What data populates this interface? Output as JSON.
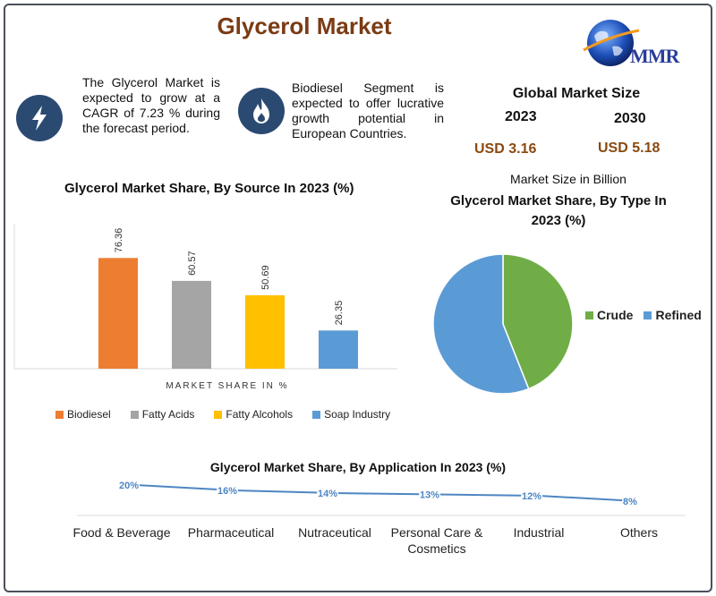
{
  "header": {
    "title": "Glycerol Market",
    "logo_text": "MMR"
  },
  "notes": [
    {
      "icon": "lightning-icon",
      "text": "The Glycerol Market is expected to grow at a CAGR of 7.23 % during the forecast period."
    },
    {
      "icon": "flame-icon",
      "text": "Biodiesel Segment is expected to offer lucrative growth potential in European Countries."
    }
  ],
  "global_market": {
    "title": "Global Market Size",
    "year_a": "2023",
    "year_b": "2030",
    "value_a": "USD 3.16",
    "value_b": "USD 5.18",
    "note": "Market Size in Billion"
  },
  "colors": {
    "biodiesel": "#ed7d31",
    "fatty_acids": "#a5a5a5",
    "fatty_alcohols": "#ffc000",
    "soap": "#5b9bd5",
    "crude": "#70ad47",
    "refined": "#5b9bd5",
    "line": "#4e86c2"
  },
  "chart_data": [
    {
      "type": "bar",
      "title": "Glycerol Market Share, By Source In 2023 (%)",
      "xlabel": "MARKET SHARE IN %",
      "categories": [
        "Biodiesel",
        "Fatty Acids",
        "Fatty Alcohols",
        "Soap Industry"
      ],
      "values": [
        76.36,
        60.57,
        50.69,
        26.35
      ],
      "data_labels": [
        "76.36",
        "60.57",
        "50.69",
        "26.35"
      ],
      "ylim": [
        0,
        100
      ],
      "legend_position": "bottom"
    },
    {
      "type": "pie",
      "title": "Glycerol Market Share, By Type In 2023 (%)",
      "labels": [
        "Crude",
        "Refined"
      ],
      "values": [
        44,
        56
      ],
      "legend_position": "right"
    },
    {
      "type": "line",
      "title": "Glycerol Market Share, By Application In 2023 (%)",
      "categories": [
        "Food & Beverage",
        "Pharmaceutical",
        "Nutraceutical",
        "Personal Care & Cosmetics",
        "Industrial",
        "Others"
      ],
      "values": [
        20,
        16,
        14,
        13,
        12,
        8
      ],
      "data_labels": [
        "20%",
        "16%",
        "14%",
        "13%",
        "12%",
        "8%"
      ]
    }
  ]
}
